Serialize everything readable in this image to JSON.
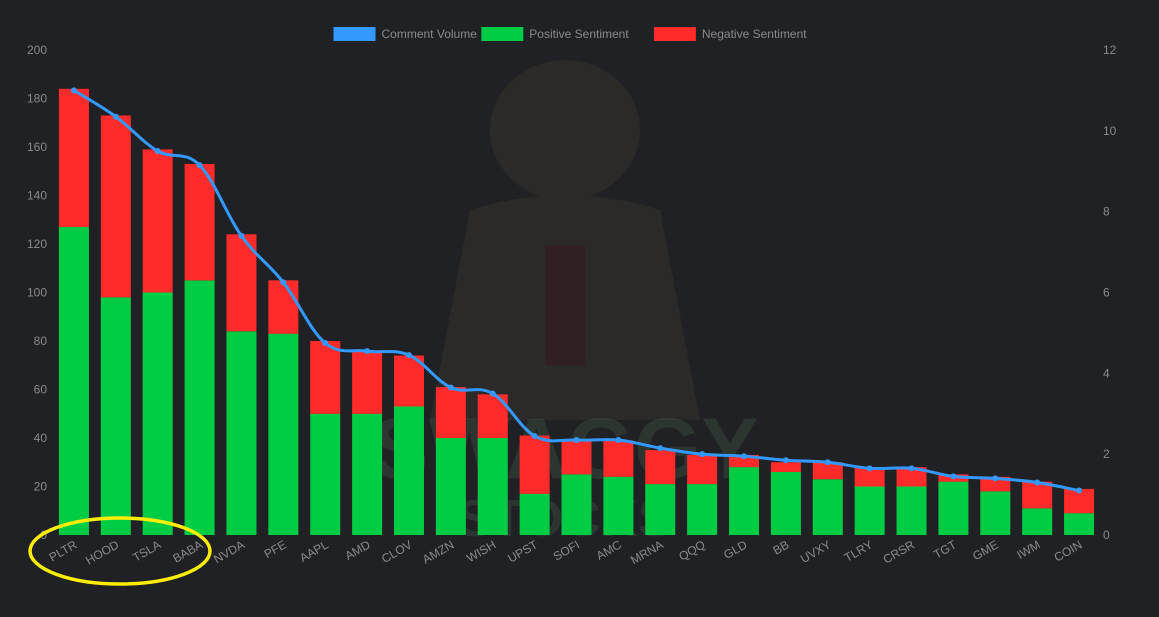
{
  "chart_data": {
    "type": "bar",
    "stacked": true,
    "title": "",
    "xlabel": "",
    "ylabel": "",
    "y2label": "",
    "categories": [
      "PLTR",
      "HOOD",
      "TSLA",
      "BABA",
      "NVDA",
      "PFE",
      "AAPL",
      "AMD",
      "CLOV",
      "AMZN",
      "WISH",
      "UPST",
      "SOFI",
      "AMC",
      "MRNA",
      "QQQ",
      "GLD",
      "BB",
      "UVXY",
      "TLRY",
      "CRSR",
      "TGT",
      "GME",
      "IWM",
      "COIN"
    ],
    "series": [
      {
        "name": "Positive Sentiment",
        "type": "bar",
        "axis": "left",
        "color": "#00cc44",
        "values": [
          127,
          98,
          100,
          105,
          84,
          83,
          50,
          50,
          53,
          40,
          40,
          17,
          25,
          24,
          21,
          21,
          28,
          26,
          23,
          20,
          20,
          22,
          18,
          11,
          9
        ]
      },
      {
        "name": "Negative Sentiment",
        "type": "bar",
        "axis": "left",
        "color": "#ff2a2a",
        "values": [
          57,
          75,
          59,
          48,
          40,
          22,
          30,
          26,
          21,
          21,
          18,
          24,
          14,
          15,
          14,
          12,
          5,
          4,
          7,
          8,
          8,
          3,
          6,
          11,
          10
        ]
      },
      {
        "name": "Comment Volume",
        "type": "line",
        "axis": "right",
        "color": "#3399ff",
        "values": [
          11.0,
          10.35,
          9.5,
          9.15,
          7.4,
          6.25,
          4.75,
          4.55,
          4.45,
          3.65,
          3.5,
          2.45,
          2.35,
          2.35,
          2.15,
          2.0,
          1.95,
          1.85,
          1.8,
          1.65,
          1.65,
          1.45,
          1.4,
          1.3,
          1.1
        ]
      }
    ],
    "legend": {
      "position": "top-center",
      "order": [
        "Comment Volume",
        "Positive Sentiment",
        "Negative Sentiment"
      ]
    },
    "ylim": [
      0,
      200
    ],
    "yticks": [
      0,
      20,
      40,
      60,
      80,
      100,
      120,
      140,
      160,
      180,
      200
    ],
    "y2lim": [
      0,
      12
    ],
    "y2ticks": [
      0,
      2,
      4,
      6,
      8,
      10,
      12
    ],
    "grid": false
  },
  "watermark": {
    "line1": "SWAGGY",
    "line2": "STOCKS"
  },
  "annotation": {
    "type": "ellipse",
    "color": "#ffee00",
    "covers": [
      "PLTR",
      "HOOD",
      "TSLA",
      "BABA"
    ]
  },
  "colors": {
    "background": "#202124",
    "tick": "#8a8a8a"
  }
}
